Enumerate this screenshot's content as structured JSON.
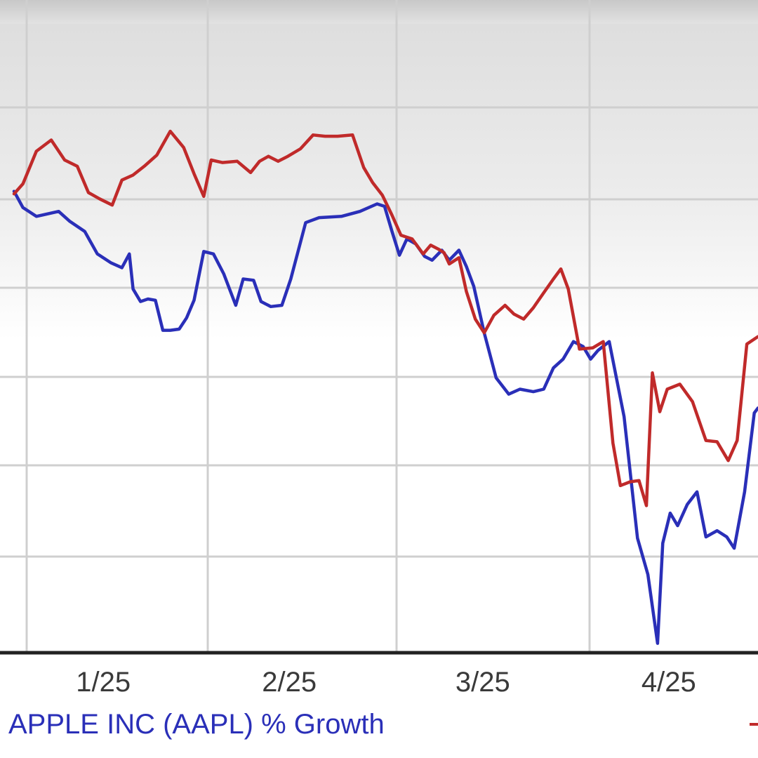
{
  "chart_data": {
    "type": "line",
    "title": "",
    "xlabel": "",
    "ylabel": "",
    "x_ticks": [
      "1/25",
      "2/25",
      "3/25",
      "4/25"
    ],
    "x_tick_positions": [
      0.12,
      0.37,
      0.63,
      0.88
    ],
    "ylim": [
      0,
      100
    ],
    "grid": true,
    "legend": "bottom",
    "colors": {
      "aapl": "#2a2fb8",
      "comparison": "#c02a2a",
      "grid": "#cfcfcf",
      "axis": "#222222",
      "tick_text": "#3a3a3a"
    },
    "series": [
      {
        "key": "aapl",
        "name": "APPLE INC (AAPL) % Growth",
        "color": "#2a2fb8",
        "points": [
          [
            0.0,
            72.8
          ],
          [
            0.012,
            70.2
          ],
          [
            0.03,
            68.8
          ],
          [
            0.06,
            69.6
          ],
          [
            0.075,
            68.0
          ],
          [
            0.095,
            66.4
          ],
          [
            0.112,
            62.8
          ],
          [
            0.13,
            61.4
          ],
          [
            0.145,
            60.6
          ],
          [
            0.155,
            62.8
          ],
          [
            0.16,
            57.2
          ],
          [
            0.17,
            55.2
          ],
          [
            0.18,
            55.6
          ],
          [
            0.19,
            55.4
          ],
          [
            0.2,
            50.6
          ],
          [
            0.21,
            50.6
          ],
          [
            0.222,
            50.8
          ],
          [
            0.232,
            52.6
          ],
          [
            0.242,
            55.4
          ],
          [
            0.255,
            63.2
          ],
          [
            0.268,
            62.8
          ],
          [
            0.282,
            59.6
          ],
          [
            0.298,
            54.6
          ],
          [
            0.308,
            58.8
          ],
          [
            0.322,
            58.6
          ],
          [
            0.332,
            55.2
          ],
          [
            0.345,
            54.4
          ],
          [
            0.36,
            54.6
          ],
          [
            0.372,
            58.8
          ],
          [
            0.392,
            67.8
          ],
          [
            0.41,
            68.6
          ],
          [
            0.44,
            68.8
          ],
          [
            0.465,
            69.6
          ],
          [
            0.488,
            70.8
          ],
          [
            0.498,
            70.4
          ],
          [
            0.508,
            66.4
          ],
          [
            0.518,
            62.6
          ],
          [
            0.528,
            65.2
          ],
          [
            0.54,
            64.4
          ],
          [
            0.552,
            62.4
          ],
          [
            0.562,
            61.8
          ],
          [
            0.575,
            63.4
          ],
          [
            0.585,
            61.8
          ],
          [
            0.598,
            63.4
          ],
          [
            0.608,
            60.8
          ],
          [
            0.618,
            57.6
          ],
          [
            0.632,
            50.2
          ],
          [
            0.648,
            43.0
          ],
          [
            0.665,
            40.4
          ],
          [
            0.68,
            41.2
          ],
          [
            0.698,
            40.8
          ],
          [
            0.712,
            41.2
          ],
          [
            0.725,
            44.6
          ],
          [
            0.738,
            46.0
          ],
          [
            0.752,
            48.8
          ],
          [
            0.765,
            48.0
          ],
          [
            0.775,
            46.0
          ],
          [
            0.785,
            47.4
          ],
          [
            0.8,
            48.8
          ],
          [
            0.82,
            36.8
          ],
          [
            0.838,
            17.4
          ],
          [
            0.852,
            11.6
          ],
          [
            0.865,
            0.6
          ],
          [
            0.872,
            16.6
          ],
          [
            0.882,
            21.4
          ],
          [
            0.892,
            19.4
          ],
          [
            0.905,
            22.8
          ],
          [
            0.918,
            24.8
          ],
          [
            0.93,
            17.6
          ],
          [
            0.945,
            18.6
          ],
          [
            0.958,
            17.6
          ],
          [
            0.968,
            15.8
          ],
          [
            0.982,
            24.8
          ],
          [
            0.995,
            37.4
          ],
          [
            1.0,
            38.2
          ]
        ]
      },
      {
        "key": "comparison",
        "name": "",
        "color": "#c02a2a",
        "points": [
          [
            0.0,
            72.4
          ],
          [
            0.012,
            74.0
          ],
          [
            0.03,
            79.2
          ],
          [
            0.05,
            81.0
          ],
          [
            0.068,
            77.8
          ],
          [
            0.085,
            76.8
          ],
          [
            0.1,
            72.6
          ],
          [
            0.115,
            71.6
          ],
          [
            0.132,
            70.6
          ],
          [
            0.145,
            74.6
          ],
          [
            0.16,
            75.4
          ],
          [
            0.175,
            76.8
          ],
          [
            0.192,
            78.6
          ],
          [
            0.21,
            82.4
          ],
          [
            0.228,
            79.8
          ],
          [
            0.242,
            75.6
          ],
          [
            0.255,
            72.0
          ],
          [
            0.265,
            77.8
          ],
          [
            0.28,
            77.4
          ],
          [
            0.3,
            77.6
          ],
          [
            0.318,
            75.8
          ],
          [
            0.33,
            77.6
          ],
          [
            0.342,
            78.4
          ],
          [
            0.355,
            77.6
          ],
          [
            0.368,
            78.4
          ],
          [
            0.385,
            79.6
          ],
          [
            0.402,
            81.8
          ],
          [
            0.418,
            81.6
          ],
          [
            0.435,
            81.6
          ],
          [
            0.455,
            81.8
          ],
          [
            0.47,
            76.6
          ],
          [
            0.482,
            74.2
          ],
          [
            0.495,
            72.2
          ],
          [
            0.508,
            69.0
          ],
          [
            0.52,
            65.8
          ],
          [
            0.535,
            65.2
          ],
          [
            0.55,
            62.8
          ],
          [
            0.56,
            64.2
          ],
          [
            0.57,
            63.6
          ],
          [
            0.578,
            63.0
          ],
          [
            0.585,
            61.2
          ],
          [
            0.598,
            62.2
          ],
          [
            0.608,
            56.8
          ],
          [
            0.62,
            52.4
          ],
          [
            0.632,
            50.2
          ],
          [
            0.645,
            53.0
          ],
          [
            0.66,
            54.6
          ],
          [
            0.672,
            53.2
          ],
          [
            0.685,
            52.4
          ],
          [
            0.698,
            54.2
          ],
          [
            0.712,
            56.6
          ],
          [
            0.725,
            58.8
          ],
          [
            0.735,
            60.4
          ],
          [
            0.745,
            57.2
          ],
          [
            0.76,
            47.6
          ],
          [
            0.778,
            47.8
          ],
          [
            0.792,
            48.8
          ],
          [
            0.805,
            32.6
          ],
          [
            0.815,
            25.8
          ],
          [
            0.828,
            26.4
          ],
          [
            0.84,
            26.6
          ],
          [
            0.85,
            22.6
          ],
          [
            0.858,
            43.8
          ],
          [
            0.868,
            37.6
          ],
          [
            0.878,
            41.2
          ],
          [
            0.895,
            42.0
          ],
          [
            0.912,
            39.2
          ],
          [
            0.93,
            33.0
          ],
          [
            0.945,
            32.8
          ],
          [
            0.96,
            29.8
          ],
          [
            0.972,
            33.0
          ],
          [
            0.985,
            48.4
          ],
          [
            1.0,
            49.6
          ]
        ]
      }
    ]
  }
}
